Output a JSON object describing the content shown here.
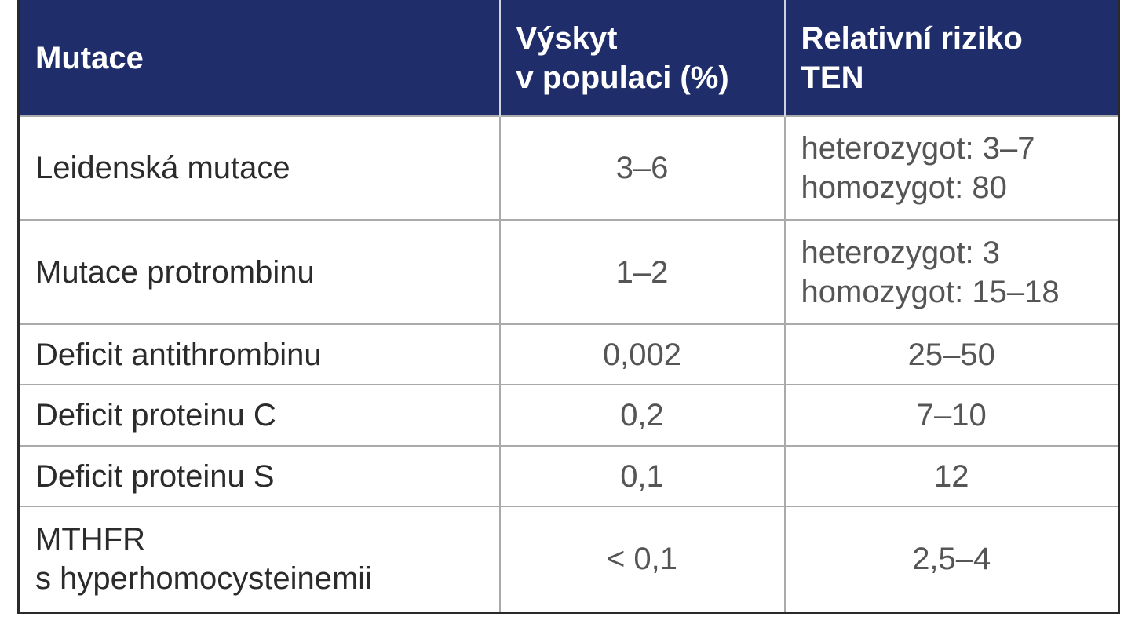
{
  "table": {
    "header": [
      [
        "Mutace"
      ],
      [
        "Výskyt",
        "v populaci (%)"
      ],
      [
        "Relativní riziko",
        "TEN"
      ]
    ],
    "rows": [
      [
        [
          "Leidenská mutace"
        ],
        [
          "3–6"
        ],
        [
          "heterozygot: 3–7",
          "homozygot: 80"
        ]
      ],
      [
        [
          "Mutace protrombinu"
        ],
        [
          "1–2"
        ],
        [
          "heterozygot: 3",
          "homozygot: 15–18"
        ]
      ],
      [
        [
          "Deficit antithrombinu"
        ],
        [
          "0,002"
        ],
        [
          "25–50"
        ]
      ],
      [
        [
          "Deficit proteinu C"
        ],
        [
          "0,2"
        ],
        [
          "7–10"
        ]
      ],
      [
        [
          "Deficit proteinu S"
        ],
        [
          "0,1"
        ],
        [
          "12"
        ]
      ],
      [
        [
          "MTHFR",
          "s hyperhomocysteinemii"
        ],
        [
          "< 0,1"
        ],
        [
          "2,5–4"
        ]
      ]
    ]
  }
}
